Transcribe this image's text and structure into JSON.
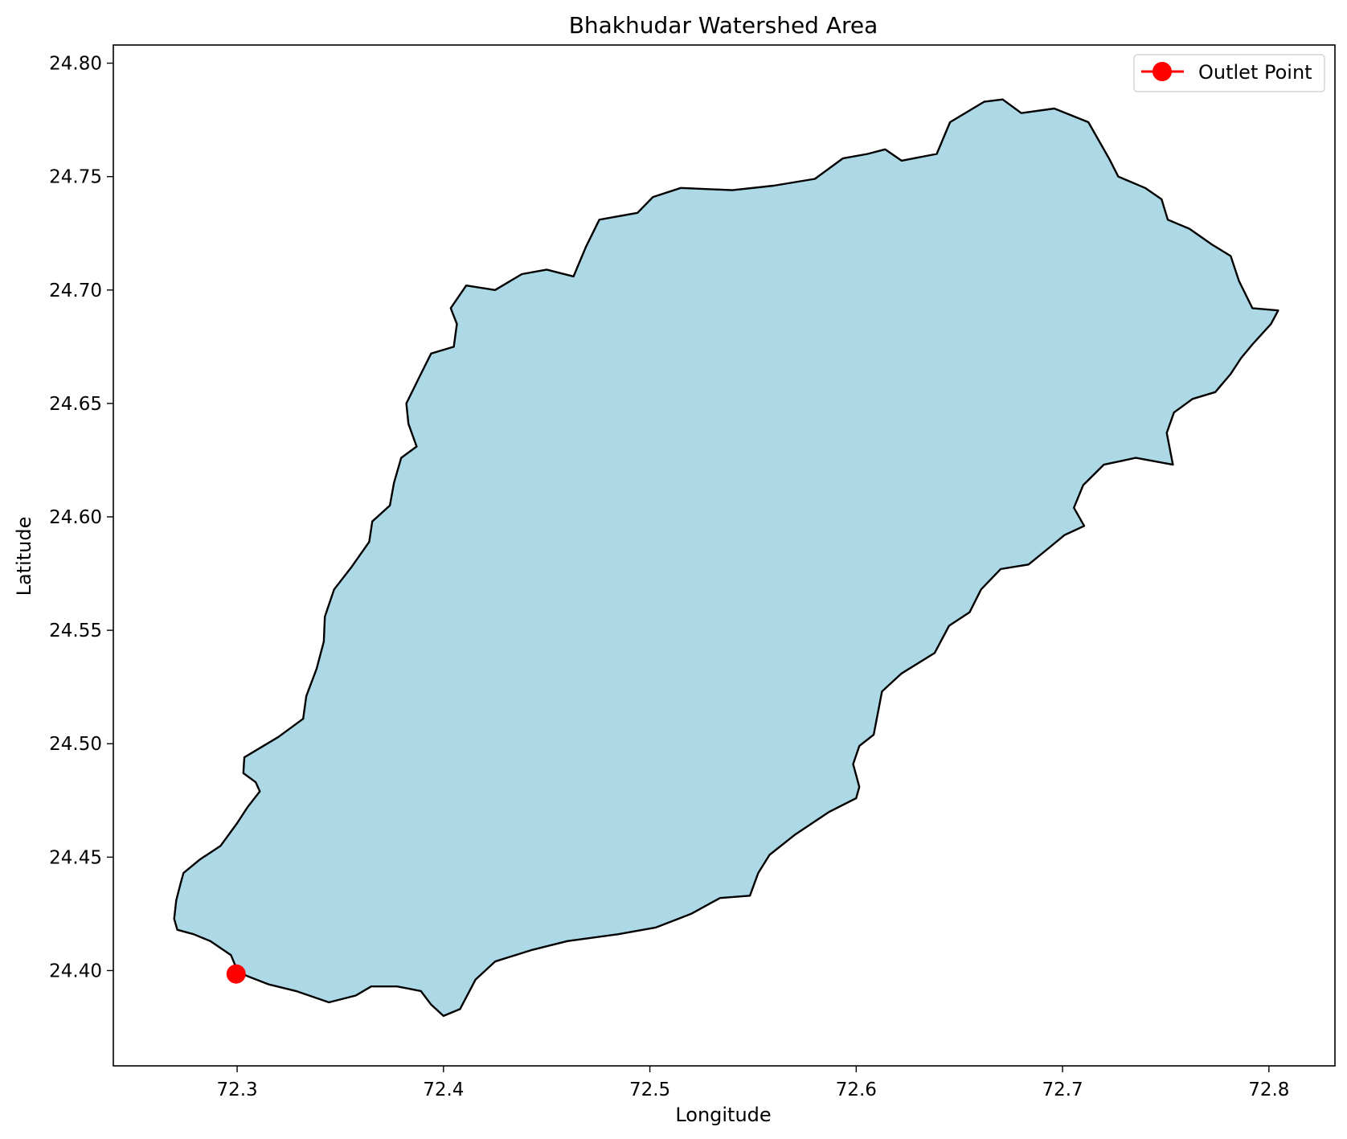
{
  "chart_data": {
    "type": "map",
    "title": "Bhakhudar Watershed Area",
    "xlabel": "Longitude",
    "ylabel": "Latitude",
    "xlim": [
      72.24,
      72.832
    ],
    "ylim": [
      24.358,
      24.808
    ],
    "x_ticks": [
      72.3,
      72.4,
      72.5,
      72.6,
      72.7,
      72.8
    ],
    "x_tick_labels": [
      "72.3",
      "72.4",
      "72.5",
      "72.6",
      "72.7",
      "72.8"
    ],
    "y_ticks": [
      24.4,
      24.45,
      24.5,
      24.55,
      24.6,
      24.65,
      24.7,
      24.75,
      24.8
    ],
    "y_tick_labels": [
      "24.40",
      "24.45",
      "24.50",
      "24.55",
      "24.60",
      "24.65",
      "24.70",
      "24.75",
      "24.80"
    ],
    "grid": false,
    "legend": {
      "position": "top-right",
      "entries": [
        "Outlet Point"
      ]
    },
    "watershed": {
      "fill_color": "#add8e6",
      "edge_color": "#000000",
      "boundary": [
        [
          72.3005,
          24.3992
        ],
        [
          72.297,
          24.4068
        ],
        [
          72.287,
          24.413
        ],
        [
          72.279,
          24.416
        ],
        [
          72.271,
          24.418
        ],
        [
          72.2695,
          24.4228
        ],
        [
          72.2705,
          24.431
        ],
        [
          72.2725,
          24.438
        ],
        [
          72.274,
          24.443
        ],
        [
          72.282,
          24.449
        ],
        [
          72.292,
          24.455
        ],
        [
          72.3,
          24.465
        ],
        [
          72.305,
          24.472
        ],
        [
          72.311,
          24.479
        ],
        [
          72.309,
          24.483
        ],
        [
          72.303,
          24.487
        ],
        [
          72.3035,
          24.494
        ],
        [
          72.32,
          24.503
        ],
        [
          72.332,
          24.511
        ],
        [
          72.3335,
          24.521
        ],
        [
          72.3385,
          24.533
        ],
        [
          72.342,
          24.545
        ],
        [
          72.3425,
          24.556
        ],
        [
          72.347,
          24.568
        ],
        [
          72.3555,
          24.578
        ],
        [
          72.364,
          24.589
        ],
        [
          72.3655,
          24.598
        ],
        [
          72.374,
          24.605
        ],
        [
          72.376,
          24.615
        ],
        [
          72.3795,
          24.626
        ],
        [
          72.387,
          24.631
        ],
        [
          72.383,
          24.641
        ],
        [
          72.382,
          24.65
        ],
        [
          72.3885,
          24.662
        ],
        [
          72.394,
          24.672
        ],
        [
          72.405,
          24.675
        ],
        [
          72.4065,
          24.685
        ],
        [
          72.4035,
          24.692
        ],
        [
          72.411,
          24.702
        ],
        [
          72.425,
          24.7
        ],
        [
          72.438,
          24.707
        ],
        [
          72.45,
          24.709
        ],
        [
          72.463,
          24.706
        ],
        [
          72.469,
          24.719
        ],
        [
          72.4755,
          24.731
        ],
        [
          72.494,
          24.734
        ],
        [
          72.5015,
          24.741
        ],
        [
          72.515,
          24.745
        ],
        [
          72.54,
          24.744
        ],
        [
          72.56,
          24.746
        ],
        [
          72.58,
          24.749
        ],
        [
          72.5935,
          24.758
        ],
        [
          72.6055,
          24.76
        ],
        [
          72.614,
          24.762
        ],
        [
          72.622,
          24.757
        ],
        [
          72.639,
          24.76
        ],
        [
          72.6455,
          24.774
        ],
        [
          72.662,
          24.783
        ],
        [
          72.671,
          24.784
        ],
        [
          72.68,
          24.778
        ],
        [
          72.696,
          24.78
        ],
        [
          72.7125,
          24.774
        ],
        [
          72.7225,
          24.758
        ],
        [
          72.727,
          24.75
        ],
        [
          72.74,
          24.745
        ],
        [
          72.748,
          24.74
        ],
        [
          72.751,
          24.731
        ],
        [
          72.7615,
          24.727
        ],
        [
          72.7725,
          24.72
        ],
        [
          72.7815,
          24.715
        ],
        [
          72.7855,
          24.704
        ],
        [
          72.792,
          24.692
        ],
        [
          72.8045,
          24.691
        ],
        [
          72.801,
          24.685
        ],
        [
          72.792,
          24.676
        ],
        [
          72.7865,
          24.67
        ],
        [
          72.7815,
          24.663
        ],
        [
          72.774,
          24.655
        ],
        [
          72.763,
          24.652
        ],
        [
          72.754,
          24.646
        ],
        [
          72.7505,
          24.637
        ],
        [
          72.7535,
          24.623
        ],
        [
          72.7355,
          24.626
        ],
        [
          72.72,
          24.623
        ],
        [
          72.71,
          24.614
        ],
        [
          72.7055,
          24.604
        ],
        [
          72.7105,
          24.596
        ],
        [
          72.701,
          24.592
        ],
        [
          72.693,
          24.586
        ],
        [
          72.6835,
          24.579
        ],
        [
          72.67,
          24.577
        ],
        [
          72.6605,
          24.568
        ],
        [
          72.655,
          24.558
        ],
        [
          72.645,
          24.552
        ],
        [
          72.638,
          24.54
        ],
        [
          72.622,
          24.531
        ],
        [
          72.6125,
          24.523
        ],
        [
          72.6085,
          24.504
        ],
        [
          72.6015,
          24.499
        ],
        [
          72.5985,
          24.491
        ],
        [
          72.6015,
          24.481
        ],
        [
          72.6,
          24.476
        ],
        [
          72.587,
          24.47
        ],
        [
          72.5705,
          24.46
        ],
        [
          72.558,
          24.451
        ],
        [
          72.5525,
          24.443
        ],
        [
          72.5485,
          24.433
        ],
        [
          72.534,
          24.432
        ],
        [
          72.52,
          24.425
        ],
        [
          72.503,
          24.419
        ],
        [
          72.4845,
          24.416
        ],
        [
          72.46,
          24.413
        ],
        [
          72.4425,
          24.409
        ],
        [
          72.425,
          24.404
        ],
        [
          72.4155,
          24.396
        ],
        [
          72.408,
          24.383
        ],
        [
          72.4,
          24.38
        ],
        [
          72.394,
          24.385
        ],
        [
          72.389,
          24.391
        ],
        [
          72.3775,
          24.393
        ],
        [
          72.365,
          24.393
        ],
        [
          72.3575,
          24.389
        ],
        [
          72.3445,
          24.386
        ],
        [
          72.3285,
          24.391
        ],
        [
          72.315,
          24.394
        ],
        [
          72.3065,
          24.397
        ],
        [
          72.3005,
          24.3992
        ]
      ]
    },
    "series": [
      {
        "name": "Outlet Point",
        "type": "marker",
        "color": "#ff0000",
        "x": [
          72.2995
        ],
        "y": [
          24.3985
        ]
      }
    ]
  }
}
